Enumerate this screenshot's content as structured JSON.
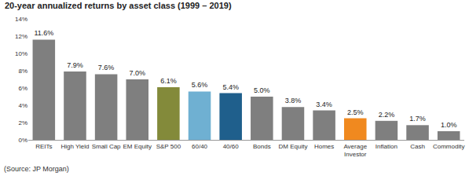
{
  "chart_data": {
    "type": "bar",
    "title": "20-year annualized returns by asset class (1999 – 2019)",
    "categories": [
      "REITs",
      "High Yield",
      "Small Cap",
      "EM Equity",
      "S&P 500",
      "60/40",
      "40/60",
      "Bonds",
      "DM Equity",
      "Homes",
      "Average Investor",
      "Inflation",
      "Cash",
      "Commodity"
    ],
    "values": [
      11.6,
      7.9,
      7.6,
      7.0,
      6.1,
      5.6,
      5.4,
      5.0,
      3.8,
      3.4,
      2.5,
      2.2,
      1.7,
      1.0
    ],
    "value_labels": [
      "11.6%",
      "7.9%",
      "7.6%",
      "7.0%",
      "6.1%",
      "5.6%",
      "5.4%",
      "5.0%",
      "3.8%",
      "3.4%",
      "2.5%",
      "2.2%",
      "1.7%",
      "1.0%"
    ],
    "colors": [
      "#7f7f7f",
      "#7f7f7f",
      "#7f7f7f",
      "#7f7f7f",
      "#838a3a",
      "#6fb0d2",
      "#1f5f8c",
      "#7f7f7f",
      "#7f7f7f",
      "#7f7f7f",
      "#f0891f",
      "#7f7f7f",
      "#7f7f7f",
      "#7f7f7f"
    ],
    "data_labels": true,
    "ylim": [
      0,
      14
    ],
    "yticks": [
      {
        "value": 0,
        "label": "0%"
      },
      {
        "value": 2,
        "label": "2%"
      },
      {
        "value": 4,
        "label": "4%"
      },
      {
        "value": 6,
        "label": "6%"
      },
      {
        "value": 8,
        "label": "8%"
      },
      {
        "value": 10,
        "label": "10%"
      },
      {
        "value": 12,
        "label": "12%"
      },
      {
        "value": 14,
        "label": "14%"
      }
    ],
    "grid": false,
    "annotations": [
      "(Source: JP Morgan)"
    ]
  }
}
